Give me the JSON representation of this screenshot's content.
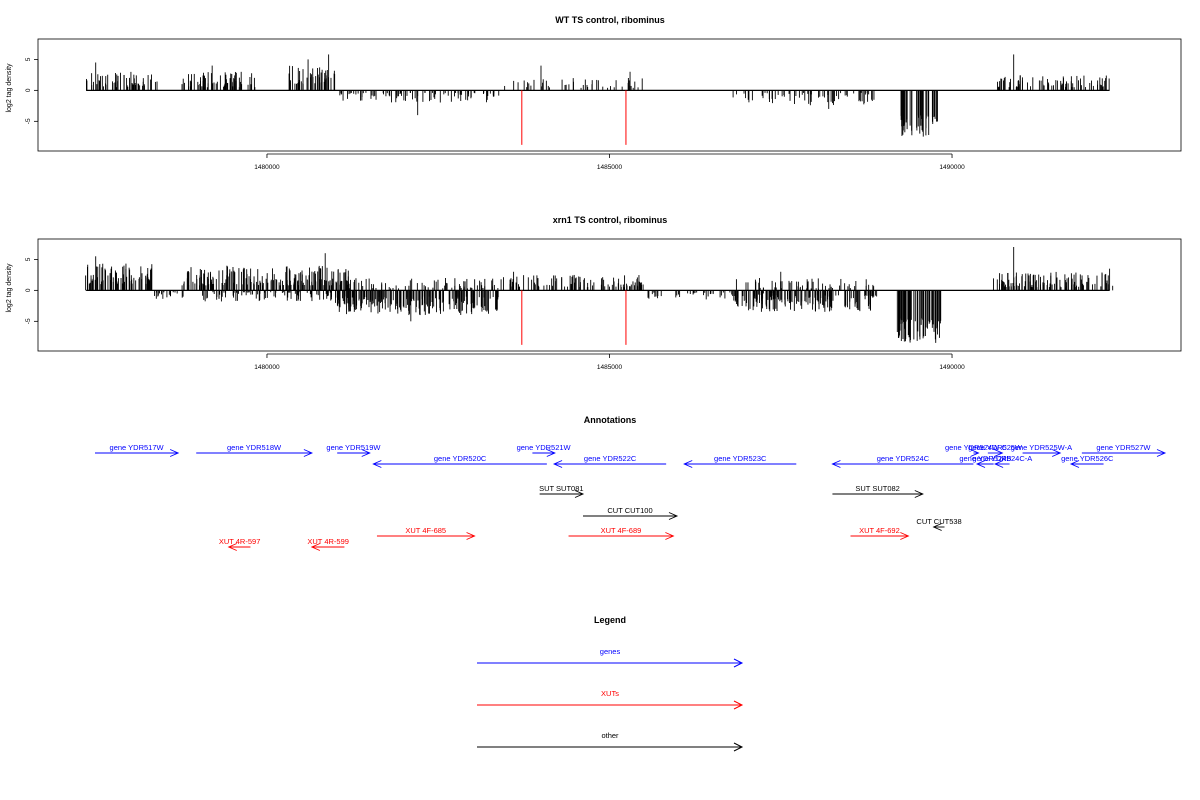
{
  "chart_data": [
    {
      "type": "bar",
      "title": "WT TS control, ribominus",
      "ylabel": "log2 tag density",
      "xlabel": "",
      "xlim": [
        1477300,
        1492700
      ],
      "ylim": [
        -8.5,
        7
      ],
      "yticks": [
        -5,
        0,
        5
      ],
      "xticks": [
        1480000,
        1485000,
        1490000
      ],
      "xtick_labels": [
        "1480000",
        "1485000",
        "1490000"
      ],
      "ytick_labels": [
        "-5",
        "0",
        "5"
      ],
      "baseline": 0,
      "grid": false,
      "series": [
        {
          "color": "#000000",
          "regions": [
            {
              "x0": 1477350,
              "x1": 1478400,
              "min": 0.5,
              "max": 3.0,
              "sign": 1,
              "density": 50,
              "peaks": [
                [
                  1477500,
                  4.5
                ]
              ]
            },
            {
              "x0": 1478750,
              "x1": 1479850,
              "min": 0.5,
              "max": 3.0,
              "sign": 1,
              "density": 55,
              "peaks": [
                [
                  1479200,
                  4.0
                ]
              ]
            },
            {
              "x0": 1480300,
              "x1": 1481000,
              "min": 1.0,
              "max": 4.0,
              "sign": 1,
              "density": 60,
              "peaks": [
                [
                  1480900,
                  5.8
                ],
                [
                  1480600,
                  5.0
                ]
              ]
            },
            {
              "x0": 1481050,
              "x1": 1483400,
              "min": 0.4,
              "max": 2.0,
              "sign": -1,
              "density": 35,
              "peaks": [
                [
                  1482200,
                  -4.0
                ]
              ]
            },
            {
              "x0": 1483450,
              "x1": 1485500,
              "min": 0.4,
              "max": 2.0,
              "sign": 1,
              "density": 20,
              "peaks": [
                [
                  1484000,
                  4.0
                ],
                [
                  1485300,
                  3.0
                ]
              ]
            },
            {
              "x0": 1486800,
              "x1": 1488900,
              "min": 0.4,
              "max": 2.5,
              "sign": -1,
              "density": 30,
              "peaks": [
                [
                  1488200,
                  -3.0
                ]
              ]
            },
            {
              "x0": 1489250,
              "x1": 1489800,
              "min": 4.0,
              "max": 7.8,
              "sign": -1,
              "density": 80,
              "peaks": []
            },
            {
              "x0": 1490650,
              "x1": 1492300,
              "min": 0.5,
              "max": 2.5,
              "sign": 1,
              "density": 45,
              "peaks": [
                [
                  1490900,
                  5.8
                ]
              ]
            }
          ]
        },
        {
          "color": "#ff0000",
          "spikes": [
            [
              1483720,
              -8.8
            ],
            [
              1485240,
              -8.8
            ]
          ]
        }
      ]
    },
    {
      "type": "bar",
      "title": "xrn1 TS control, ribominus",
      "ylabel": "log2 tag density",
      "xlabel": "",
      "xlim": [
        1477300,
        1492700
      ],
      "ylim": [
        -8.5,
        7
      ],
      "yticks": [
        -5,
        0,
        5
      ],
      "xticks": [
        1480000,
        1485000,
        1490000
      ],
      "xtick_labels": [
        "1480000",
        "1485000",
        "1490000"
      ],
      "ytick_labels": [
        "-5",
        "0",
        "5"
      ],
      "baseline": 0,
      "grid": false,
      "series": [
        {
          "color": "#000000",
          "regions": [
            {
              "x0": 1477350,
              "x1": 1478350,
              "min": 1.0,
              "max": 4.5,
              "sign": 1,
              "density": 80,
              "peaks": [
                [
                  1477500,
                  5.5
                ]
              ]
            },
            {
              "x0": 1478350,
              "x1": 1478800,
              "min": 0.3,
              "max": 1.5,
              "sign": -1,
              "density": 30,
              "peaks": []
            },
            {
              "x0": 1478750,
              "x1": 1481200,
              "min": 0.8,
              "max": 4.0,
              "sign": 1,
              "density": 80,
              "peaks": [
                [
                  1480850,
                  6.0
                ]
              ]
            },
            {
              "x0": 1479000,
              "x1": 1481000,
              "min": 0.3,
              "max": 1.8,
              "sign": -1,
              "density": 40,
              "peaks": []
            },
            {
              "x0": 1481000,
              "x1": 1483400,
              "min": 1.0,
              "max": 4.0,
              "sign": -1,
              "density": 80,
              "peaks": [
                [
                  1482100,
                  -5.0
                ]
              ]
            },
            {
              "x0": 1481000,
              "x1": 1483400,
              "min": 0.3,
              "max": 2.0,
              "sign": 1,
              "density": 30,
              "peaks": []
            },
            {
              "x0": 1483400,
              "x1": 1485500,
              "min": 0.5,
              "max": 2.5,
              "sign": 1,
              "density": 45,
              "peaks": [
                [
                  1483600,
                  3.0
                ]
              ]
            },
            {
              "x0": 1485500,
              "x1": 1487500,
              "min": 0.3,
              "max": 1.5,
              "sign": -1,
              "density": 25,
              "peaks": []
            },
            {
              "x0": 1486800,
              "x1": 1488900,
              "min": 0.8,
              "max": 3.5,
              "sign": -1,
              "density": 70,
              "peaks": [
                [
                  1487500,
                  3.0
                ]
              ]
            },
            {
              "x0": 1486800,
              "x1": 1488900,
              "min": 0.3,
              "max": 2.0,
              "sign": 1,
              "density": 25,
              "peaks": []
            },
            {
              "x0": 1489200,
              "x1": 1489850,
              "min": 4.5,
              "max": 8.5,
              "sign": -1,
              "density": 100,
              "peaks": []
            },
            {
              "x0": 1490600,
              "x1": 1492350,
              "min": 0.5,
              "max": 3.0,
              "sign": 1,
              "density": 60,
              "peaks": [
                [
                  1490900,
                  7.0
                ],
                [
                  1492300,
                  3.5
                ]
              ]
            }
          ]
        },
        {
          "color": "#ff0000",
          "spikes": [
            [
              1483720,
              -8.8
            ],
            [
              1485240,
              -8.8
            ]
          ]
        }
      ]
    }
  ],
  "annotations": {
    "title": "Annotations",
    "items": [
      {
        "label": "gene YDR517W",
        "type": "gene",
        "start": 1477350,
        "end": 1478500,
        "strand": "+",
        "row": 0
      },
      {
        "label": "gene YDR518W",
        "type": "gene",
        "start": 1478750,
        "end": 1480350,
        "strand": "+",
        "row": 0
      },
      {
        "label": "gene YDR519W",
        "type": "gene",
        "start": 1480700,
        "end": 1481150,
        "strand": "+",
        "row": 0
      },
      {
        "label": "gene YDR520C",
        "type": "gene",
        "start": 1481200,
        "end": 1483600,
        "strand": "-",
        "row": 1
      },
      {
        "label": "gene YDR521W",
        "type": "gene",
        "start": 1483400,
        "end": 1483710,
        "strand": "+",
        "row": 0
      },
      {
        "label": "gene YDR522C",
        "type": "gene",
        "start": 1483700,
        "end": 1485250,
        "strand": "-",
        "row": 1
      },
      {
        "label": "gene YDR523C",
        "type": "gene",
        "start": 1485500,
        "end": 1487050,
        "strand": "-",
        "row": 1
      },
      {
        "label": "gene YDR524C",
        "type": "gene",
        "start": 1487550,
        "end": 1489500,
        "strand": "-",
        "row": 1
      },
      {
        "label": "gene YDR524W-C",
        "type": "gene",
        "start": 1489500,
        "end": 1489570,
        "strand": "+",
        "row": 0
      },
      {
        "label": "gene YDR525W",
        "type": "gene",
        "start": 1489700,
        "end": 1489900,
        "strand": "+",
        "row": 0
      },
      {
        "label": "gene YDR525W-A",
        "type": "gene",
        "start": 1490180,
        "end": 1490700,
        "strand": "+",
        "row": 0
      },
      {
        "label": "gene YDR524B",
        "type": "gene",
        "start": 1489550,
        "end": 1489780,
        "strand": "-",
        "row": 1
      },
      {
        "label": "gene YDR524C-A",
        "type": "gene",
        "start": 1489800,
        "end": 1490000,
        "strand": "-",
        "row": 1
      },
      {
        "label": "gene YDR526C",
        "type": "gene",
        "start": 1490850,
        "end": 1491300,
        "strand": "-",
        "row": 1
      },
      {
        "label": "gene YDR527W",
        "type": "gene",
        "start": 1491000,
        "end": 1492150,
        "strand": "+",
        "row": 0
      },
      {
        "label": "SUT SUT081",
        "type": "other",
        "start": 1483500,
        "end": 1484100,
        "strand": "+",
        "row": 3
      },
      {
        "label": "CUT CUT100",
        "type": "other",
        "start": 1484100,
        "end": 1485400,
        "strand": "+",
        "row": 4
      },
      {
        "label": "SUT SUT082",
        "type": "other",
        "start": 1487550,
        "end": 1488800,
        "strand": "+",
        "row": 3
      },
      {
        "label": "CUT CUT538",
        "type": "other",
        "start": 1488950,
        "end": 1489100,
        "strand": "-",
        "row": 5
      },
      {
        "label": "XUT 4R-597",
        "type": "XUT",
        "start": 1479200,
        "end": 1479500,
        "strand": "-",
        "row": 7
      },
      {
        "label": "XUT 4R-599",
        "type": "XUT",
        "start": 1480350,
        "end": 1480800,
        "strand": "-",
        "row": 7
      },
      {
        "label": "XUT 4F-685",
        "type": "XUT",
        "start": 1481250,
        "end": 1482600,
        "strand": "+",
        "row": 6
      },
      {
        "label": "XUT 4F-689",
        "type": "XUT",
        "start": 1483900,
        "end": 1485350,
        "strand": "+",
        "row": 6
      },
      {
        "label": "XUT 4F-692",
        "type": "XUT",
        "start": 1487800,
        "end": 1488600,
        "strand": "+",
        "row": 6
      }
    ]
  },
  "legend": {
    "title": "Legend",
    "entries": [
      {
        "label": "genes",
        "color": "#0000ff"
      },
      {
        "label": "XUTs",
        "color": "#ff0000"
      },
      {
        "label": "other",
        "color": "#000000"
      }
    ]
  },
  "colors": {
    "gene": "#0000ff",
    "XUT": "#ff0000",
    "other": "#000000",
    "axis": "#000000"
  }
}
